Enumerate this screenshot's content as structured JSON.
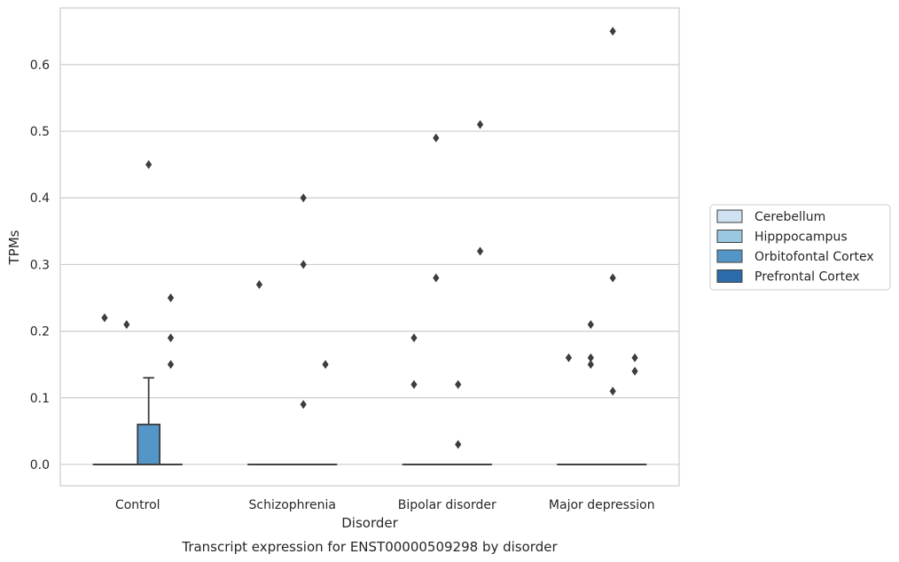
{
  "chart_data": {
    "type": "box",
    "caption": "Transcript expression for ENST00000509298 by disorder",
    "xlabel": "Disorder",
    "ylabel": "TPMs",
    "ylim": [
      -0.032,
      0.685
    ],
    "yticks": [
      "0.0",
      "0.1",
      "0.2",
      "0.3",
      "0.4",
      "0.5",
      "0.6"
    ],
    "grid": true,
    "legend_position": "right",
    "categories": [
      "Control",
      "Schizophrenia",
      "Bipolar disorder",
      "Major depression"
    ],
    "series": [
      {
        "name": "Cerebellum",
        "color": "#d0e1f2",
        "boxes": [
          {
            "q1": 0,
            "median": 0,
            "q3": 0,
            "whisker_low": 0,
            "whisker_high": 0,
            "outliers": [
              0.22
            ]
          },
          {
            "q1": 0,
            "median": 0,
            "q3": 0,
            "whisker_low": 0,
            "whisker_high": 0,
            "outliers": [
              0.27
            ]
          },
          {
            "q1": 0,
            "median": 0,
            "q3": 0,
            "whisker_low": 0,
            "whisker_high": 0,
            "outliers": [
              0.19,
              0.12
            ]
          },
          {
            "q1": 0,
            "median": 0,
            "q3": 0,
            "whisker_low": 0,
            "whisker_high": 0,
            "outliers": [
              0.16
            ]
          }
        ]
      },
      {
        "name": "Hipppocampus",
        "color": "#9ac8e0",
        "boxes": [
          {
            "q1": 0,
            "median": 0,
            "q3": 0,
            "whisker_low": 0,
            "whisker_high": 0,
            "outliers": [
              0.21
            ]
          },
          {
            "q1": 0,
            "median": 0,
            "q3": 0,
            "whisker_low": 0,
            "whisker_high": 0,
            "outliers": []
          },
          {
            "q1": 0,
            "median": 0,
            "q3": 0,
            "whisker_low": 0,
            "whisker_high": 0,
            "outliers": [
              0.49,
              0.28
            ]
          },
          {
            "q1": 0,
            "median": 0,
            "q3": 0,
            "whisker_low": 0,
            "whisker_high": 0,
            "outliers": [
              0.21,
              0.16,
              0.15
            ]
          }
        ]
      },
      {
        "name": "Orbitofontal Cortex",
        "color": "#5596c8",
        "boxes": [
          {
            "q1": 0,
            "median": 0,
            "q3": 0.06,
            "whisker_low": 0,
            "whisker_high": 0.13,
            "outliers": [
              0.45
            ]
          },
          {
            "q1": 0,
            "median": 0,
            "q3": 0,
            "whisker_low": 0,
            "whisker_high": 0,
            "outliers": [
              0.4,
              0.3,
              0.09
            ]
          },
          {
            "q1": 0,
            "median": 0,
            "q3": 0,
            "whisker_low": 0,
            "whisker_high": 0,
            "outliers": [
              0.12,
              0.03
            ]
          },
          {
            "q1": 0,
            "median": 0,
            "q3": 0,
            "whisker_low": 0,
            "whisker_high": 0,
            "outliers": [
              0.65,
              0.28,
              0.11
            ]
          }
        ]
      },
      {
        "name": "Prefrontal Cortex",
        "color": "#2c6ba9",
        "boxes": [
          {
            "q1": 0,
            "median": 0,
            "q3": 0,
            "whisker_low": 0,
            "whisker_high": 0,
            "outliers": [
              0.25,
              0.19,
              0.15
            ]
          },
          {
            "q1": 0,
            "median": 0,
            "q3": 0,
            "whisker_low": 0,
            "whisker_high": 0,
            "outliers": [
              0.15
            ]
          },
          {
            "q1": 0,
            "median": 0,
            "q3": 0,
            "whisker_low": 0,
            "whisker_high": 0,
            "outliers": [
              0.51,
              0.32
            ]
          },
          {
            "q1": 0,
            "median": 0,
            "q3": 0,
            "whisker_low": 0,
            "whisker_high": 0,
            "outliers": [
              0.16,
              0.14
            ]
          }
        ]
      }
    ]
  }
}
